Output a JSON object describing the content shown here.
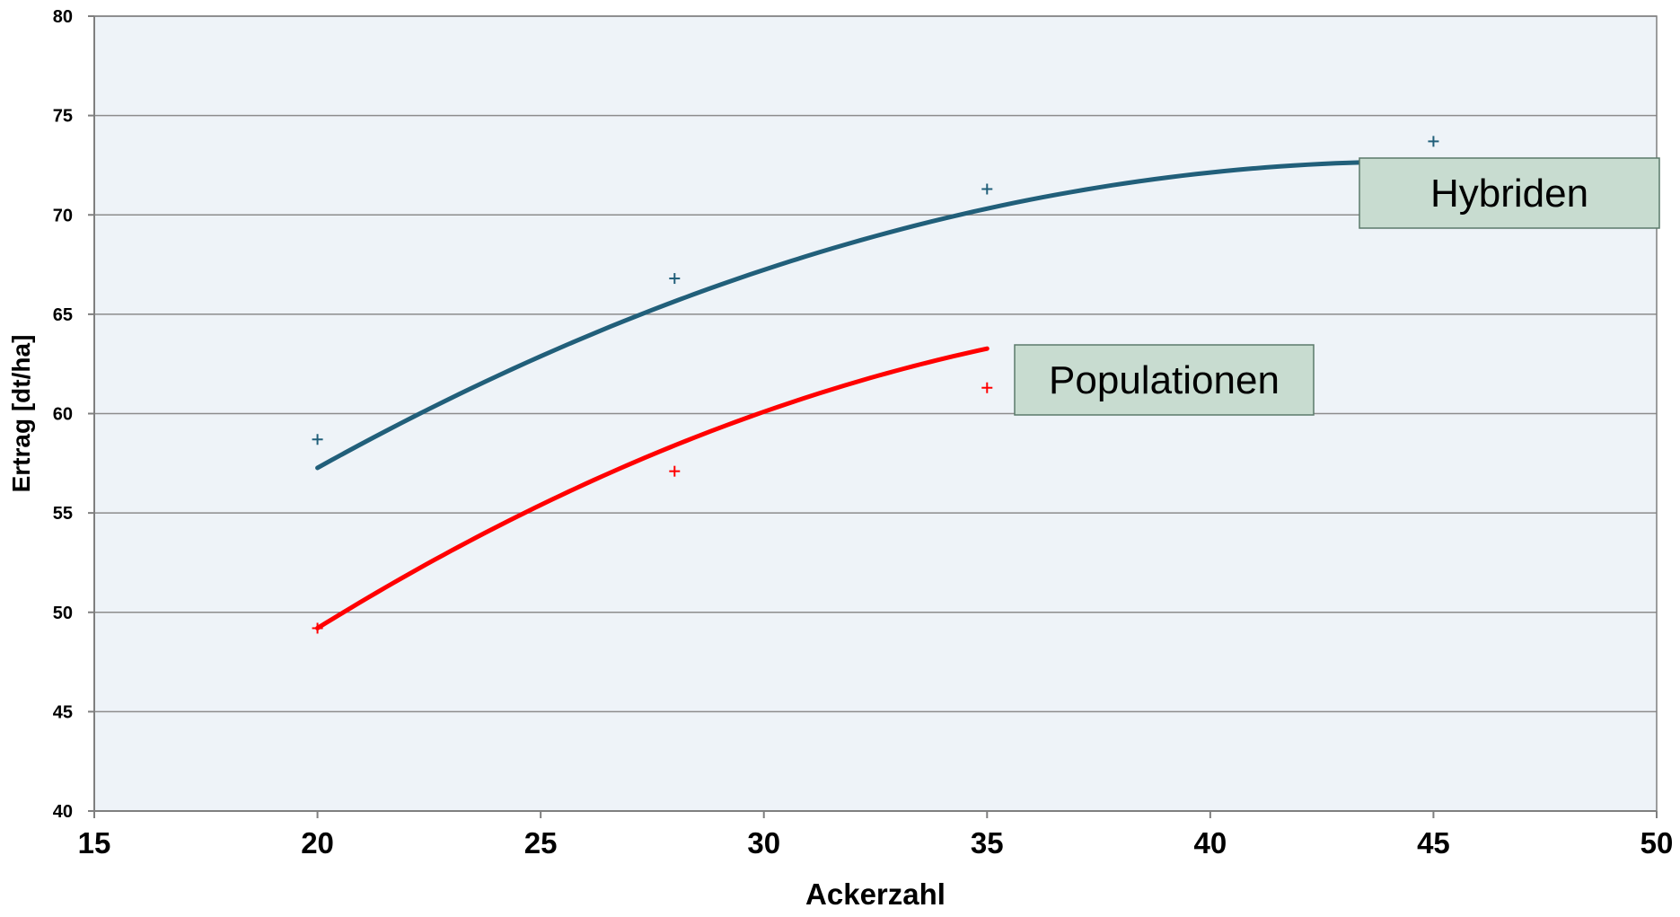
{
  "chart_data": {
    "type": "line",
    "title": "",
    "xlabel": "Ackerzahl",
    "ylabel": "Ertrag [dt/ha]",
    "xlim": [
      15,
      50
    ],
    "ylim": [
      40,
      80
    ],
    "x_ticks": [
      15,
      20,
      25,
      30,
      35,
      40,
      45,
      50
    ],
    "y_ticks": [
      40,
      45,
      50,
      55,
      60,
      65,
      70,
      75,
      80
    ],
    "grid": true,
    "legend": "none",
    "plot_background": "#eef3f8",
    "series": [
      {
        "name": "Hybriden",
        "color": "#215f7a",
        "x": [
          20,
          28,
          35,
          45
        ],
        "y": [
          58.7,
          66.8,
          71.3,
          73.7
        ],
        "curve": {
          "a": 22.14,
          "b": 2.263,
          "c": -0.02533
        }
      },
      {
        "name": "Populationen",
        "color": "#ff0000",
        "x": [
          20,
          28,
          35
        ],
        "y": [
          49.2,
          57.1,
          61.3
        ],
        "curve": {
          "a": 9.289,
          "b": 2.6,
          "c": -0.03022
        }
      }
    ],
    "annotations": [
      {
        "text": "Hybriden",
        "series": "Hybriden",
        "box_fill": "#c8dcd0"
      },
      {
        "text": "Populationen",
        "series": "Populationen",
        "box_fill": "#c8dcd0"
      }
    ]
  }
}
